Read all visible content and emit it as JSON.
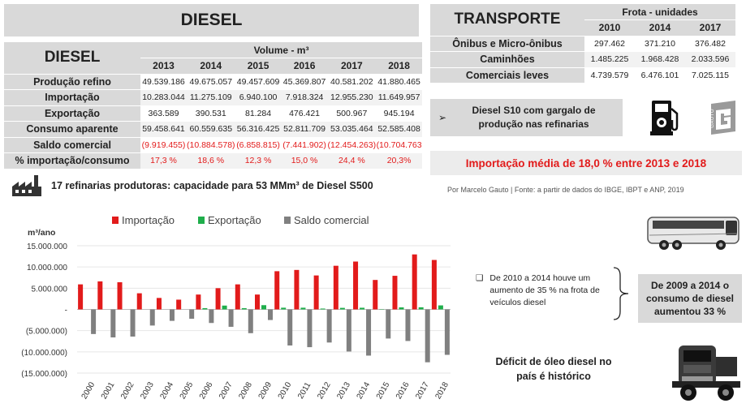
{
  "diesel_title": "DIESEL",
  "diesel_table": {
    "corner_label": "DIESEL",
    "volume_header": "Volume - m³",
    "years": [
      "2013",
      "2014",
      "2015",
      "2016",
      "2017",
      "2018"
    ],
    "rows": [
      {
        "label": "Produção refino",
        "values": [
          "49.539.186",
          "49.675.057",
          "49.457.609",
          "45.369.807",
          "40.581.202",
          "41.880.465"
        ]
      },
      {
        "label": "Importação",
        "values": [
          "10.283.044",
          "11.275.109",
          "6.940.100",
          "7.918.324",
          "12.955.230",
          "11.649.957"
        ]
      },
      {
        "label": "Exportação",
        "values": [
          "363.589",
          "390.531",
          "81.284",
          "476.421",
          "500.967",
          "945.194"
        ]
      },
      {
        "label": "Consumo aparente",
        "values": [
          "59.458.641",
          "60.559.635",
          "56.316.425",
          "52.811.709",
          "53.035.464",
          "52.585.408"
        ]
      },
      {
        "label": "Saldo comercial",
        "values": [
          "(9.919.455)",
          "(10.884.578)",
          "(6.858.815)",
          "(7.441.902)",
          "(12.454.263)",
          "(10.704.763"
        ]
      },
      {
        "label": "% importação/consumo",
        "values": [
          "17,3 %",
          "18,6 %",
          "12,3 %",
          "15,0 %",
          "24,4 %",
          "20,3%"
        ]
      }
    ]
  },
  "refinery_text": "17 refinarias produtoras: capacidade para 53 MMm³ de Diesel S500",
  "transport_table": {
    "corner_label": "TRANSPORTE",
    "fleet_header": "Frota - unidades",
    "years": [
      "2010",
      "2014",
      "2017"
    ],
    "rows": [
      {
        "label": "Ônibus e Micro-ônibus",
        "values": [
          "297.462",
          "371.210",
          "376.482"
        ]
      },
      {
        "label": "Caminhões",
        "values": [
          "1.485.225",
          "1.968.428",
          "2.033.596"
        ]
      },
      {
        "label": "Comerciais leves",
        "values": [
          "4.739.579",
          "6.476.101",
          "7.025.115"
        ]
      }
    ]
  },
  "s10_bullet": "➢",
  "s10_text": "Diesel S10 com gargalo de produção nas refinarias",
  "import_avg_text": "Importação média de 18,0 % entre 2013 e 2018",
  "source_text": "Por Marcelo Gauto | Fonte: a partir de dados do IBGE, IBPT e ANP, 2019",
  "logo_text": "GAUTO",
  "fleet_note_bullet": "❑",
  "fleet_note": "De 2010 a 2014 houve um aumento de 35 % na frota de veículos diesel",
  "consumption_box": "De 2009 a 2014 o consumo de diesel aumentou 33 %",
  "deficit_text": "Déficit de óleo diesel no país é histórico",
  "colors": {
    "import": "#e21b1b",
    "export": "#1fae4b",
    "balance": "#808080",
    "panel": "#d9d9d9"
  },
  "icons": [
    "factory-icon",
    "fuel-pump-icon",
    "gauto-logo-icon",
    "bus-icon",
    "truck-icon"
  ],
  "chart_data": {
    "type": "bar",
    "ylabel": "m³/ano",
    "legend": [
      "Importação",
      "Exportação",
      "Saldo comercial"
    ],
    "legend_position": "top",
    "categories": [
      "2000",
      "2001",
      "2002",
      "2003",
      "2004",
      "2005",
      "2006",
      "2007",
      "2008",
      "2009",
      "2010",
      "2011",
      "2012",
      "2013",
      "2014",
      "2015",
      "2016",
      "2017",
      "2018"
    ],
    "series": [
      {
        "name": "Importação",
        "values": [
          5900000,
          6600000,
          6400000,
          3800000,
          2700000,
          2300000,
          3500000,
          5000000,
          5900000,
          3500000,
          9000000,
          9300000,
          8000000,
          10283044,
          11275109,
          6940100,
          7918324,
          12955230,
          11649957
        ]
      },
      {
        "name": "Exportação",
        "values": [
          0,
          0,
          0,
          0,
          0,
          0,
          300000,
          900000,
          300000,
          1000000,
          400000,
          400000,
          200000,
          363589,
          390531,
          81284,
          476421,
          500967,
          945194
        ]
      },
      {
        "name": "Saldo comercial",
        "values": [
          -5800000,
          -6600000,
          -6400000,
          -3800000,
          -2700000,
          -2200000,
          -3200000,
          -4100000,
          -5600000,
          -2500000,
          -8500000,
          -8900000,
          -7800000,
          -9919455,
          -10884578,
          -6858815,
          -7441902,
          -12454263,
          -10704763
        ]
      }
    ],
    "yticks": [
      "15.000.000",
      "10.000.000",
      "5.000.000",
      "-",
      "(5.000.000)",
      "(10.000.000)",
      "(15.000.000)"
    ],
    "ylim": [
      -15000000,
      15000000
    ]
  }
}
